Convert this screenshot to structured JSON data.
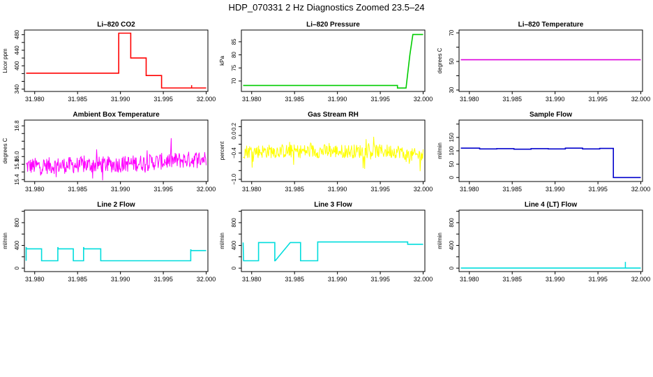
{
  "figure": {
    "title": "HDP_070331  2 Hz Diagnostics Zoomed 23.5–24"
  },
  "chart_data": [
    {
      "type": "line",
      "title": "Li–820 CO2",
      "xlabel": "",
      "ylabel": "Licor ppm",
      "xlim": [
        31.9788,
        32.0002
      ],
      "ylim": [
        334,
        492
      ],
      "x_ticks": [
        "31.980",
        "31.985",
        "31.990",
        "31.995",
        "32.000"
      ],
      "y_ticks": [
        "340",
        "360",
        "380",
        "400",
        "420",
        "440",
        "460",
        "480"
      ],
      "y_tick_labels": [
        "340",
        "400",
        "440",
        "480"
      ],
      "color": "#ff0000",
      "pattern": "steps",
      "series": [
        {
          "x": [
            31.979,
            31.9898,
            31.9898,
            31.9912,
            31.9912,
            31.993,
            31.993,
            31.9948,
            31.9948,
            32.0
          ],
          "values": [
            381,
            381,
            484,
            484,
            420,
            420,
            375,
            375,
            343,
            343
          ]
        }
      ],
      "noise": 1.2,
      "spikes": [
        {
          "x": 31.9983,
          "y": 350
        }
      ]
    },
    {
      "type": "line",
      "title": "Li–820 Pressure",
      "xlabel": "",
      "ylabel": "kPa",
      "xlim": [
        31.9788,
        32.0002
      ],
      "ylim": [
        66,
        89.5
      ],
      "x_ticks": [
        "31.980",
        "31.985",
        "31.990",
        "31.995",
        "32.000"
      ],
      "y_ticks": [
        "70",
        "75",
        "80",
        "85"
      ],
      "y_tick_labels": [
        "70",
        "75",
        "80",
        "85"
      ],
      "color": "#00cc00",
      "pattern": "steps",
      "series": [
        {
          "x": [
            31.979,
            31.997,
            31.997,
            31.998,
            31.99845,
            31.9988,
            32.0
          ],
          "values": [
            68.3,
            68.3,
            67.3,
            67.3,
            80,
            87.8,
            87.8
          ]
        }
      ],
      "noise": 0.05,
      "spikes": []
    },
    {
      "type": "line",
      "title": "Li–820 Temperature",
      "xlabel": "",
      "ylabel": "degrees C",
      "xlim": [
        31.9788,
        32.0002
      ],
      "ylim": [
        29,
        72
      ],
      "x_ticks": [
        "31.980",
        "31.985",
        "31.990",
        "31.995",
        "32.000"
      ],
      "y_ticks": [
        "30",
        "40",
        "50",
        "60",
        "70"
      ],
      "y_tick_labels": [
        "30",
        "50",
        "70"
      ],
      "color": "#dd00dd",
      "pattern": "steps",
      "series": [
        {
          "x": [
            31.979,
            32.0
          ],
          "values": [
            51.2,
            51.2
          ]
        }
      ],
      "noise": 0,
      "spikes": []
    },
    {
      "type": "line",
      "title": "Ambient Box Temperature",
      "xlabel": "",
      "ylabel": "degrees C",
      "xlim": [
        31.9788,
        32.0002
      ],
      "ylim": [
        15.35,
        16.95
      ],
      "x_ticks": [
        "31.980",
        "31.985",
        "31.990",
        "31.995",
        "32.000"
      ],
      "y_ticks": [
        "15.4",
        "15.6",
        "15.8",
        "16.0",
        "16.2",
        "16.4",
        "16.6",
        "16.8"
      ],
      "y_tick_labels": [
        "15.4",
        "15.8",
        "16.0",
        "16.8"
      ],
      "color": "#ff00ff",
      "pattern": "noisy",
      "series": [
        {
          "x": [
            31.979,
            31.99,
            32.0
          ],
          "values": [
            15.75,
            15.8,
            15.95
          ]
        }
      ],
      "noise": 0.22,
      "spikes": []
    },
    {
      "type": "line",
      "title": "Gas Stream RH",
      "xlabel": "",
      "ylabel": "percent",
      "xlim": [
        31.9788,
        32.0002
      ],
      "ylim": [
        -1.05,
        0.35
      ],
      "x_ticks": [
        "31.980",
        "31.985",
        "31.990",
        "31.995",
        "32.000"
      ],
      "y_ticks": [
        "-1.0",
        "-0.8",
        "-0.6",
        "-0.4",
        "-0.2",
        "0.0",
        "0.2"
      ],
      "y_tick_labels": [
        "−1.0",
        "−0.4",
        "0.0",
        "0.2"
      ],
      "color": "#ffff00",
      "pattern": "noisy",
      "series": [
        {
          "x": [
            31.979,
            31.9975,
            31.9976,
            32.0
          ],
          "values": [
            -0.36,
            -0.36,
            -0.45,
            -0.45
          ]
        }
      ],
      "noise": 0.16,
      "spikes": []
    },
    {
      "type": "line",
      "title": "Sample Flow",
      "xlabel": "",
      "ylabel": "ml/min",
      "xlim": [
        31.9788,
        32.0002
      ],
      "ylim": [
        -15,
        215
      ],
      "x_ticks": [
        "31.980",
        "31.985",
        "31.990",
        "31.995",
        "32.000"
      ],
      "y_ticks": [
        "0",
        "50",
        "100",
        "150",
        "200"
      ],
      "y_tick_labels": [
        "0",
        "50",
        "100",
        "150"
      ],
      "color": "#0000cc",
      "pattern": "steps",
      "series": [
        {
          "x": [
            31.979,
            31.9812,
            31.9812,
            31.9832,
            31.9832,
            31.9852,
            31.9852,
            31.9872,
            31.9872,
            31.9892,
            31.9892,
            31.9912,
            31.9912,
            31.9932,
            31.9932,
            31.9952,
            31.9952,
            31.9968,
            31.9968,
            32.0
          ],
          "values": [
            110,
            110,
            107,
            107,
            108,
            108,
            106,
            106,
            108,
            108,
            107,
            107,
            110,
            110,
            107,
            107,
            109,
            109,
            0,
            0
          ]
        }
      ],
      "noise": 1.0,
      "spikes": []
    },
    {
      "type": "line",
      "title": "Line 2 Flow",
      "xlabel": "",
      "ylabel": "ml/min",
      "xlim": [
        31.9788,
        32.0002
      ],
      "ylim": [
        -60,
        1020
      ],
      "x_ticks": [
        "31.980",
        "31.985",
        "31.990",
        "31.995",
        "32.000"
      ],
      "y_ticks": [
        "0",
        "200",
        "400",
        "600",
        "800",
        "1000"
      ],
      "y_tick_labels": [
        "0",
        "400",
        "800"
      ],
      "color": "#00dddd",
      "pattern": "steps",
      "series": [
        {
          "x": [
            31.979,
            31.979,
            31.97905,
            31.9808,
            31.9808,
            31.9827,
            31.9827,
            31.98275,
            31.9845,
            31.9845,
            31.9857,
            31.9857,
            31.98575,
            31.9877,
            31.9877,
            31.9982,
            31.9982,
            31.99825,
            32.0
          ],
          "values": [
            130,
            370,
            340,
            340,
            130,
            130,
            370,
            340,
            340,
            130,
            130,
            370,
            340,
            340,
            130,
            130,
            330,
            310,
            310
          ]
        }
      ],
      "noise": 3,
      "spikes": []
    },
    {
      "type": "line",
      "title": "Line 3 Flow",
      "xlabel": "",
      "ylabel": "ml/min",
      "xlim": [
        31.9788,
        32.0002
      ],
      "ylim": [
        -60,
        1020
      ],
      "x_ticks": [
        "31.980",
        "31.985",
        "31.990",
        "31.995",
        "32.000"
      ],
      "y_ticks": [
        "0",
        "200",
        "400",
        "600",
        "800",
        "1000"
      ],
      "y_tick_labels": [
        "0",
        "400",
        "800"
      ],
      "color": "#00dddd",
      "pattern": "steps",
      "series": [
        {
          "x": [
            31.979,
            31.979,
            31.97905,
            31.9808,
            31.9808,
            31.9827,
            31.9827,
            31.98275,
            31.9845,
            31.9845,
            31.9857,
            31.9857,
            31.98575,
            31.9877,
            31.9877,
            31.9982,
            31.9982,
            32.0
          ],
          "values": [
            450,
            450,
            130,
            130,
            450,
            450,
            130,
            130,
            450,
            450,
            450,
            130,
            130,
            130,
            460,
            460,
            420,
            420
          ]
        }
      ],
      "noise": 3,
      "spikes": []
    },
    {
      "type": "line",
      "title": "Line 4 (LT) Flow",
      "xlabel": "",
      "ylabel": "ml/min",
      "xlim": [
        31.9788,
        32.0002
      ],
      "ylim": [
        -60,
        1020
      ],
      "x_ticks": [
        "31.980",
        "31.985",
        "31.990",
        "31.995",
        "32.000"
      ],
      "y_ticks": [
        "0",
        "200",
        "400",
        "600",
        "800",
        "1000"
      ],
      "y_tick_labels": [
        "0",
        "400",
        "800"
      ],
      "color": "#00dddd",
      "pattern": "steps",
      "series": [
        {
          "x": [
            31.979,
            32.0
          ],
          "values": [
            2,
            2
          ]
        }
      ],
      "noise": 1,
      "spikes": [
        {
          "x": 31.9982,
          "y": 110
        }
      ]
    }
  ]
}
